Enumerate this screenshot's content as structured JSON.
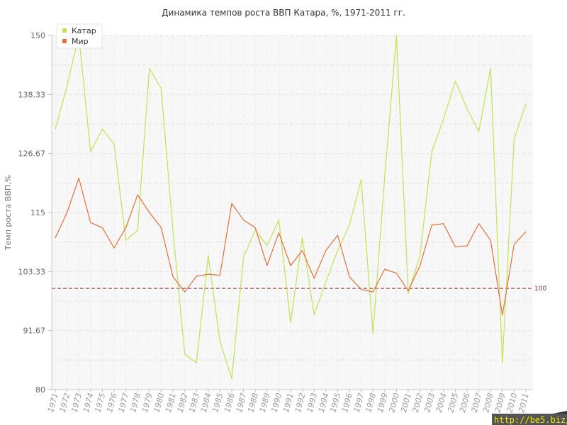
{
  "chart_data": {
    "type": "line",
    "title": "Динамика темпов роста ВВП Катара, %, 1971-2011 гг.",
    "xlabel": "",
    "ylabel": "Темп роста ВВП,%",
    "ylim": [
      80,
      150
    ],
    "yticks": [
      "80",
      "91.67",
      "103.33",
      "115",
      "126.67",
      "138.33",
      "150"
    ],
    "x": [
      "1971",
      "1972",
      "1973",
      "1974",
      "1975",
      "1976",
      "1977",
      "1978",
      "1979",
      "1980",
      "1981",
      "1982",
      "1983",
      "1984",
      "1985",
      "1986",
      "1987",
      "1988",
      "1989",
      "1990",
      "1991",
      "1992",
      "1993",
      "1994",
      "1995",
      "1996",
      "1997",
      "1998",
      "1999",
      "2000",
      "2001",
      "2002",
      "2003",
      "2004",
      "2005",
      "2006",
      "2007",
      "2008",
      "2009",
      "2010",
      "2011"
    ],
    "series": [
      {
        "name": "Катар",
        "color": "#c3e054",
        "values": [
          131.5,
          140,
          150,
          127,
          131.5,
          128.5,
          109.5,
          111.5,
          143.5,
          139.5,
          111.5,
          87,
          85.3,
          106.5,
          89.5,
          82.2,
          106.2,
          111.5,
          108.5,
          113.5,
          93.2,
          110,
          94.8,
          101.3,
          107.5,
          112.5,
          121.5,
          91.1,
          122,
          150,
          99,
          106.5,
          127,
          133.5,
          141,
          135.5,
          131,
          143.5,
          85.3,
          129.5,
          136.5
        ]
      },
      {
        "name": "Мир",
        "color": "#e0703a",
        "values": [
          110,
          115,
          121.8,
          113,
          112,
          108,
          112,
          118.5,
          115,
          112,
          102.3,
          99.3,
          102.4,
          102.8,
          102.6,
          116.8,
          113.5,
          112,
          104.5,
          111,
          104.5,
          107.5,
          102,
          107.5,
          110.5,
          102.3,
          99.8,
          99.3,
          103.8,
          103,
          99.5,
          104.5,
          112.5,
          112.8,
          108.2,
          108.4,
          112.8,
          109.5,
          94.7,
          108.7,
          111.2
        ]
      }
    ],
    "reference_line": {
      "value": 100,
      "label": "100",
      "color": "#8b2c3a"
    },
    "grid": true,
    "legend": "top-left"
  },
  "watermark": "http://be5.biz/"
}
